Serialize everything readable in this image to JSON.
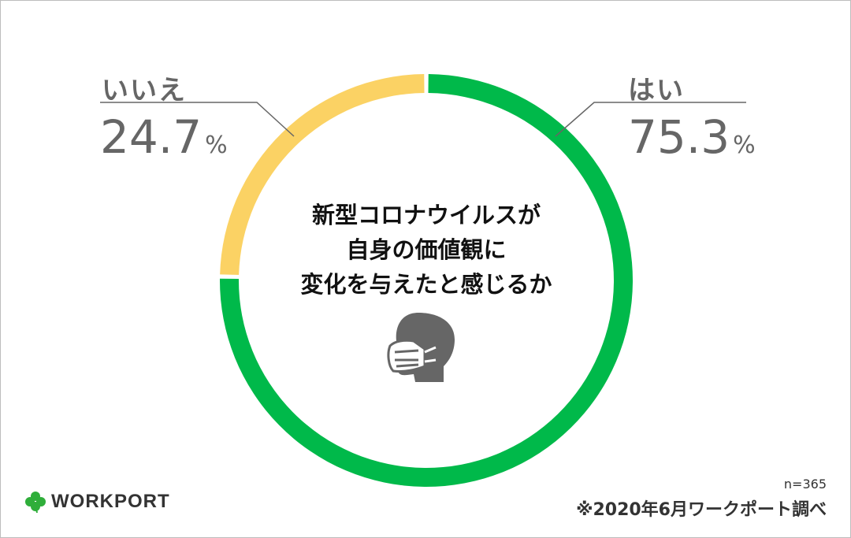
{
  "chart_data": {
    "type": "pie",
    "title": "新型コロナウイルスが\n自身の価値観に\n変化を与えたと感じるか",
    "title_lines": [
      "新型コロナウイルスが",
      "自身の価値観に",
      "変化を与えたと感じるか"
    ],
    "categories": [
      "はい",
      "いいえ"
    ],
    "values": [
      75.3,
      24.7
    ],
    "value_labels": [
      "75.3",
      "24.7"
    ],
    "unit": "%",
    "colors": [
      "#00b94a",
      "#fbd264"
    ]
  },
  "footer": {
    "brand": "WORKPORT",
    "sample_size": "n=365",
    "source": "※2020年6月ワークポート調べ"
  },
  "icons": {
    "center": "face-mask-icon",
    "logo": "clover-icon"
  }
}
